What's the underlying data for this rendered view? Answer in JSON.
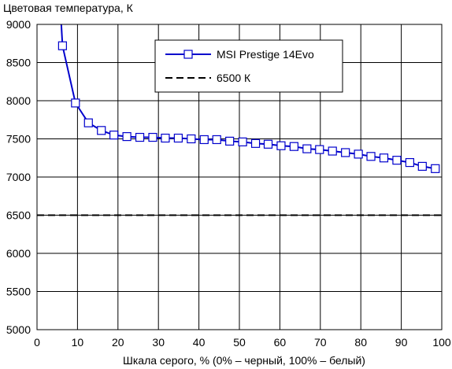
{
  "chart_data": {
    "type": "line",
    "title": "",
    "ylabel": "Цветовая температура, К",
    "xlabel": "Шкала серого, % (0% – черный, 100% – белый)",
    "xlim": [
      0,
      100
    ],
    "ylim": [
      5000,
      9000
    ],
    "xticks": [
      0,
      10,
      20,
      30,
      40,
      50,
      60,
      70,
      80,
      90,
      100
    ],
    "yticks": [
      5000,
      5500,
      6000,
      6500,
      7000,
      7500,
      8000,
      8500,
      9000
    ],
    "grid": true,
    "legend": "top-center",
    "series": [
      {
        "name": "MSI Prestige 14Evo",
        "color": "#0000cc",
        "marker": "square",
        "x": [
          6.0,
          6.3,
          9.5,
          12.7,
          15.9,
          19.0,
          22.2,
          25.4,
          28.6,
          31.7,
          34.9,
          38.1,
          41.3,
          44.4,
          47.6,
          50.8,
          54.0,
          57.1,
          60.3,
          63.5,
          66.7,
          69.8,
          73.0,
          76.2,
          79.4,
          82.5,
          85.7,
          88.9,
          92.1,
          95.2,
          98.4
        ],
        "y": [
          9000,
          8720,
          7970,
          7710,
          7610,
          7550,
          7530,
          7520,
          7520,
          7510,
          7510,
          7500,
          7490,
          7490,
          7470,
          7460,
          7440,
          7430,
          7410,
          7400,
          7370,
          7360,
          7340,
          7320,
          7300,
          7270,
          7250,
          7220,
          7190,
          7140,
          7110
        ]
      },
      {
        "name": "6500 К",
        "color": "#000000",
        "style": "dashed",
        "x": [
          0,
          100
        ],
        "y": [
          6500,
          6500
        ]
      }
    ]
  }
}
